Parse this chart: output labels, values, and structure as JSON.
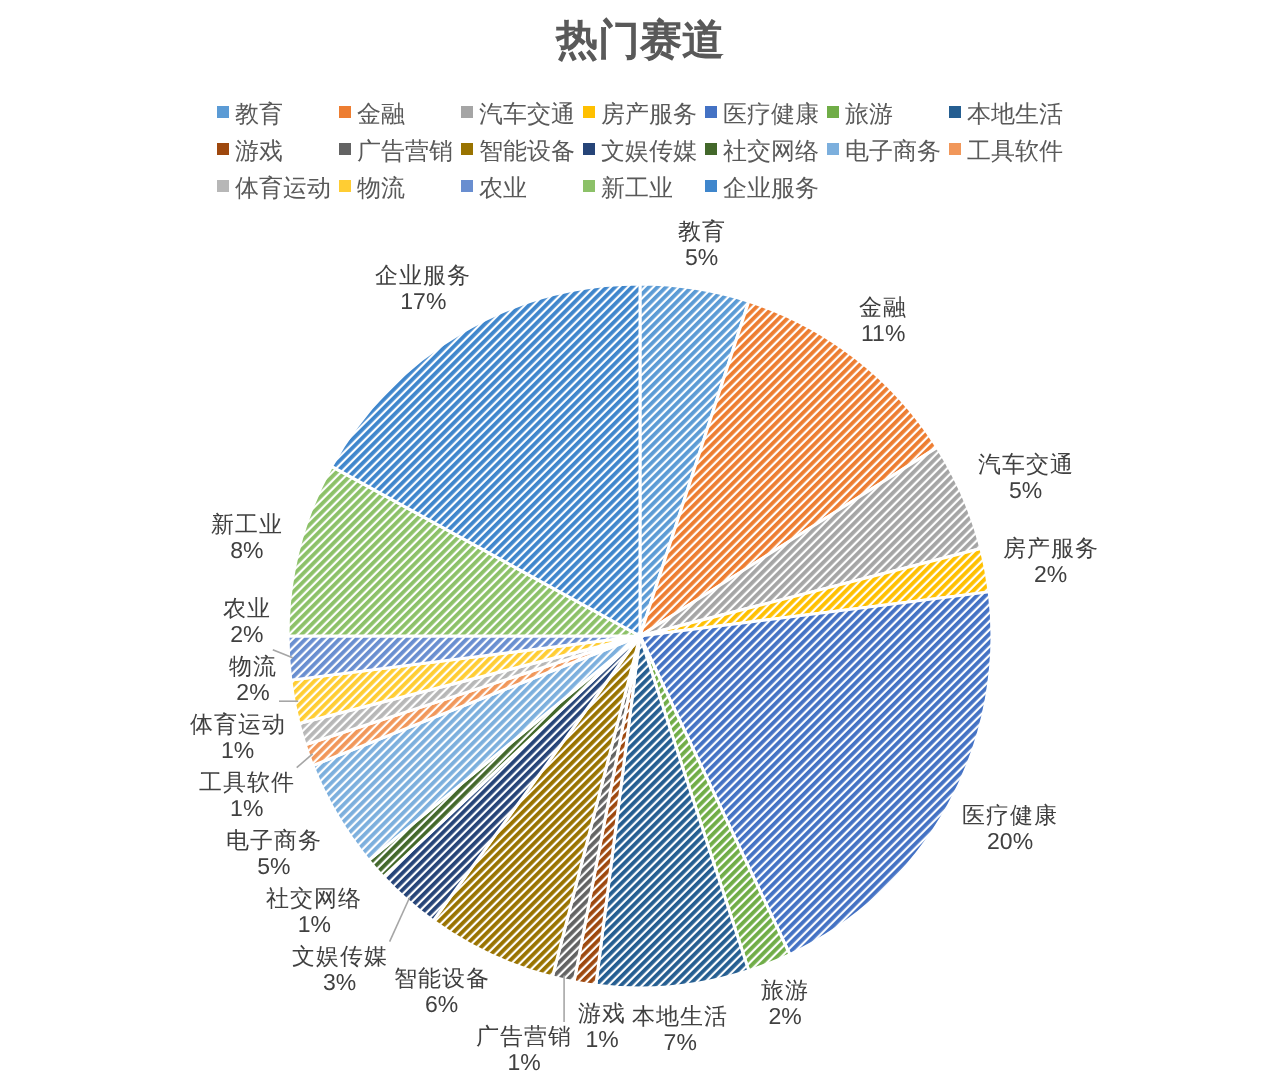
{
  "chart_data": {
    "type": "pie",
    "title": "热门赛道",
    "categories": [
      "教育",
      "金融",
      "汽车交通",
      "房产服务",
      "医疗健康",
      "旅游",
      "本地生活",
      "游戏",
      "广告营销",
      "智能设备",
      "文娱传媒",
      "社交网络",
      "电子商务",
      "工具软件",
      "体育运动",
      "物流",
      "农业",
      "新工业",
      "企业服务"
    ],
    "values": [
      5,
      11,
      5,
      2,
      20,
      2,
      7,
      1,
      1,
      6,
      3,
      1,
      5,
      1,
      1,
      2,
      2,
      8,
      17
    ],
    "value_labels": [
      "5%",
      "11%",
      "5%",
      "2%",
      "20%",
      "2%",
      "7%",
      "1%",
      "1%",
      "6%",
      "3%",
      "1%",
      "5%",
      "1%",
      "1%",
      "2%",
      "2%",
      "8%",
      "17%"
    ],
    "colors": [
      "#5b9bd5",
      "#ed7d31",
      "#a5a5a5",
      "#ffc000",
      "#4472c4",
      "#70ad47",
      "#255e91",
      "#9e480e",
      "#636363",
      "#997300",
      "#264478",
      "#43682b",
      "#7cafdd",
      "#f1975a",
      "#b7b7b7",
      "#ffcd33",
      "#698ed0",
      "#8cc168",
      "#3f86cc"
    ],
    "legend": "top"
  }
}
